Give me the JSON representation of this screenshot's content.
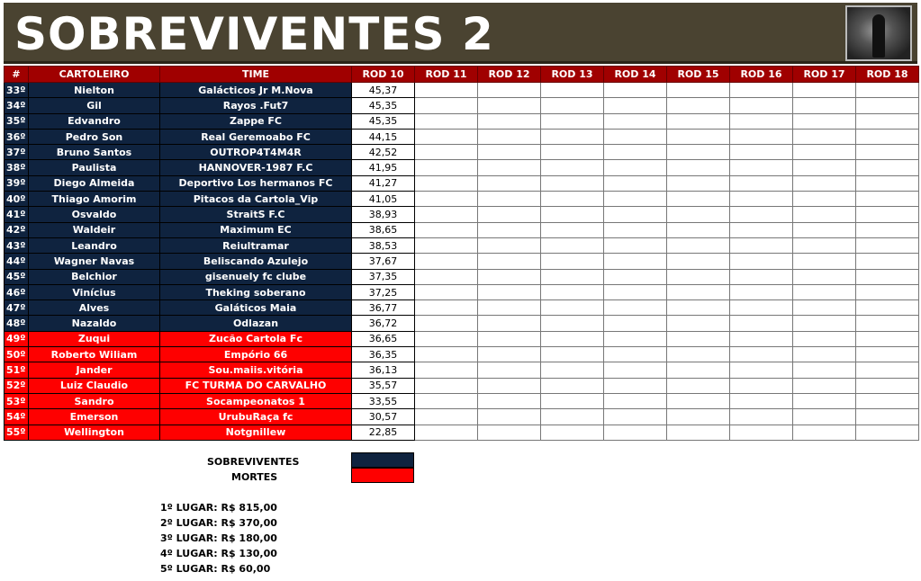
{
  "title": "SOBREVIVENTES 2",
  "headers": [
    "#",
    "CARTOLEIRO",
    "TIME",
    "ROD 10",
    "ROD 11",
    "ROD 12",
    "ROD 13",
    "ROD 14",
    "ROD 15",
    "ROD 16",
    "ROD 17",
    "ROD 18"
  ],
  "rows": [
    {
      "rank": "33º",
      "name": "Nielton",
      "team": "Galácticos Jr M.Nova",
      "rod10": "45,37",
      "status": "sobrevivente"
    },
    {
      "rank": "34º",
      "name": "Gil",
      "team": "Rayos .Fut7",
      "rod10": "45,35",
      "status": "sobrevivente"
    },
    {
      "rank": "35º",
      "name": "Edvandro",
      "team": "Zappe FC",
      "rod10": "45,35",
      "status": "sobrevivente"
    },
    {
      "rank": "36º",
      "name": "Pedro Son",
      "team": "Real Geremoabo FC",
      "rod10": "44,15",
      "status": "sobrevivente"
    },
    {
      "rank": "37º",
      "name": "Bruno Santos",
      "team": "OUTROP4T4M4R",
      "rod10": "42,52",
      "status": "sobrevivente"
    },
    {
      "rank": "38º",
      "name": "Paulista",
      "team": "HANNOVER-1987 F.C",
      "rod10": "41,95",
      "status": "sobrevivente"
    },
    {
      "rank": "39º",
      "name": "Diego Almeida",
      "team": "Deportivo Los hermanos FC",
      "rod10": "41,27",
      "status": "sobrevivente"
    },
    {
      "rank": "40º",
      "name": "Thiago Amorim",
      "team": "Pitacos da Cartola_Vip",
      "rod10": "41,05",
      "status": "sobrevivente"
    },
    {
      "rank": "41º",
      "name": "Osvaldo",
      "team": "StraitS F.C",
      "rod10": "38,93",
      "status": "sobrevivente"
    },
    {
      "rank": "42º",
      "name": "Waldeir",
      "team": "Maximum EC",
      "rod10": "38,65",
      "status": "sobrevivente"
    },
    {
      "rank": "43º",
      "name": "Leandro",
      "team": "Reiultramar",
      "rod10": "38,53",
      "status": "sobrevivente"
    },
    {
      "rank": "44º",
      "name": "Wagner Navas",
      "team": "Beliscando Azulejo",
      "rod10": "37,67",
      "status": "sobrevivente"
    },
    {
      "rank": "45º",
      "name": "Belchior",
      "team": "gisenuely fc clube",
      "rod10": "37,35",
      "status": "sobrevivente"
    },
    {
      "rank": "46º",
      "name": "Vinícius",
      "team": "Theking soberano",
      "rod10": "37,25",
      "status": "sobrevivente"
    },
    {
      "rank": "47º",
      "name": "Alves",
      "team": "Galáticos Maia",
      "rod10": "36,77",
      "status": "sobrevivente"
    },
    {
      "rank": "48º",
      "name": "Nazaldo",
      "team": "Odlazan",
      "rod10": "36,72",
      "status": "sobrevivente"
    },
    {
      "rank": "49º",
      "name": "Zuqui",
      "team": "Zucão Cartola Fc",
      "rod10": "36,65",
      "status": "morte"
    },
    {
      "rank": "50º",
      "name": "Roberto Wiliam",
      "team": "Empório 66",
      "rod10": "36,35",
      "status": "morte"
    },
    {
      "rank": "51º",
      "name": "Jander",
      "team": "Sou.maiis.vitória",
      "rod10": "36,13",
      "status": "morte"
    },
    {
      "rank": "52º",
      "name": "Luiz Claudio",
      "team": "FC TURMA DO CARVALHO",
      "rod10": "35,57",
      "status": "morte"
    },
    {
      "rank": "53º",
      "name": "Sandro",
      "team": "Socampeonatos 1",
      "rod10": "33,55",
      "status": "morte"
    },
    {
      "rank": "54º",
      "name": "Emerson",
      "team": "UrubuRaça fc",
      "rod10": "30,57",
      "status": "morte"
    },
    {
      "rank": "55º",
      "name": "Wellington",
      "team": "Notgnillew",
      "rod10": "22,85",
      "status": "morte"
    }
  ],
  "legend": {
    "survivors": "SOBREVIVENTES",
    "deaths": "MORTES",
    "survivors_color": "#0f233f",
    "deaths_color": "#fe0000"
  },
  "prizes": [
    "1º LUGAR: R$ 815,00",
    "2º LUGAR: R$ 370,00",
    "3º LUGAR: R$ 180,00",
    "4º LUGAR: R$ 130,00",
    "5º LUGAR: R$ 60,00"
  ]
}
